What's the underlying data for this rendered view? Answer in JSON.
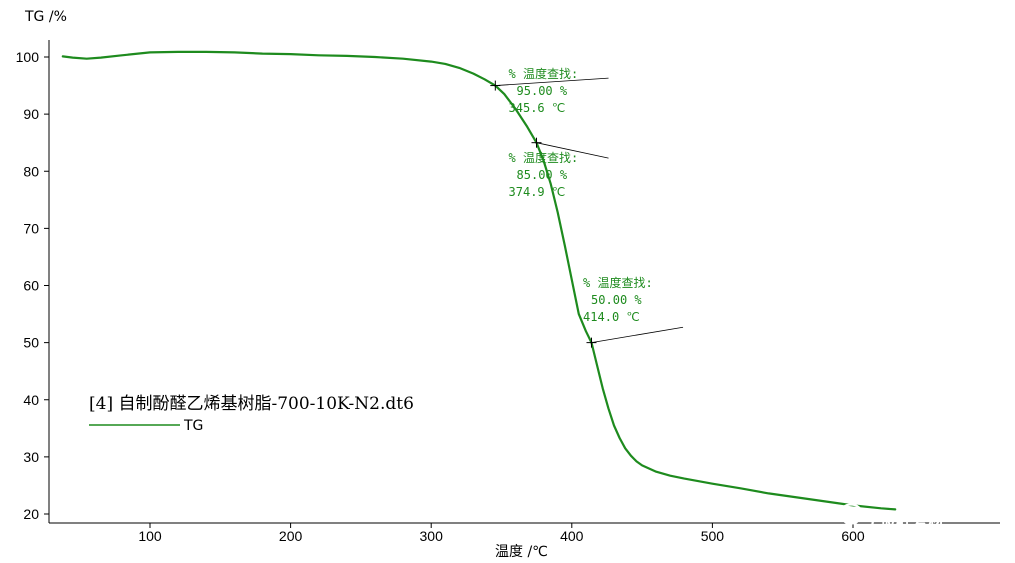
{
  "chart_data": {
    "type": "line",
    "ylabel": "TG /%",
    "xlabel": "温度 /℃",
    "xlim": [
      30,
      630
    ],
    "ylim": [
      19,
      106
    ],
    "x_ticks": [
      100,
      200,
      300,
      400,
      500,
      600
    ],
    "y_ticks": [
      20,
      30,
      40,
      50,
      60,
      70,
      80,
      90,
      100
    ],
    "legend": {
      "title": "[4] 自制酚醛乙烯基树脂-700-10K-N2.dt6",
      "series_label": "TG"
    },
    "series": [
      {
        "name": "TG",
        "color": "#1e8b1e",
        "x": [
          38,
          45,
          55,
          65,
          80,
          100,
          120,
          140,
          160,
          180,
          200,
          220,
          240,
          260,
          280,
          300,
          310,
          320,
          330,
          338,
          345.6,
          352,
          360,
          368,
          374.9,
          380,
          385,
          390,
          395,
          400,
          405,
          410,
          414,
          418,
          422,
          426,
          430,
          434,
          438,
          442,
          446,
          450,
          460,
          470,
          480,
          500,
          520,
          540,
          560,
          580,
          600,
          620,
          630
        ],
        "y": [
          100.1,
          99.9,
          99.7,
          99.9,
          100.3,
          100.8,
          100.9,
          100.9,
          100.8,
          100.6,
          100.5,
          100.3,
          100.2,
          100.0,
          99.7,
          99.2,
          98.8,
          98.1,
          97.1,
          96.1,
          95.0,
          93.5,
          90.9,
          87.9,
          85.0,
          81.8,
          77.8,
          72.8,
          67.0,
          61.0,
          55.0,
          52.0,
          50.0,
          46.0,
          42.0,
          38.5,
          35.5,
          33.3,
          31.5,
          30.2,
          29.2,
          28.5,
          27.4,
          26.7,
          26.2,
          25.3,
          24.5,
          23.6,
          22.9,
          22.2,
          21.5,
          21.0,
          20.8
        ]
      }
    ],
    "annotations": [
      {
        "header": "% 温度查找:",
        "value": "95.00 %",
        "temp": "345.6 ℃",
        "x": 345.6,
        "y": 95.0,
        "label_x": 355,
        "label_y": 96.3,
        "label_side": "left"
      },
      {
        "header": "% 温度查找:",
        "value": "85.00 %",
        "temp": "374.9 ℃",
        "x": 374.9,
        "y": 85.0,
        "label_x": 355,
        "label_y": 81.6,
        "label_side": "left"
      },
      {
        "header": "% 温度查找:",
        "value": "50.00 %",
        "temp": "414.0 ℃",
        "x": 414.0,
        "y": 50.0,
        "label_x": 408,
        "label_y": 59.7,
        "label_side": "left"
      }
    ],
    "grid": false
  },
  "watermark": {
    "text": "玻纤复材",
    "icon": "wechat-logo-icon"
  }
}
